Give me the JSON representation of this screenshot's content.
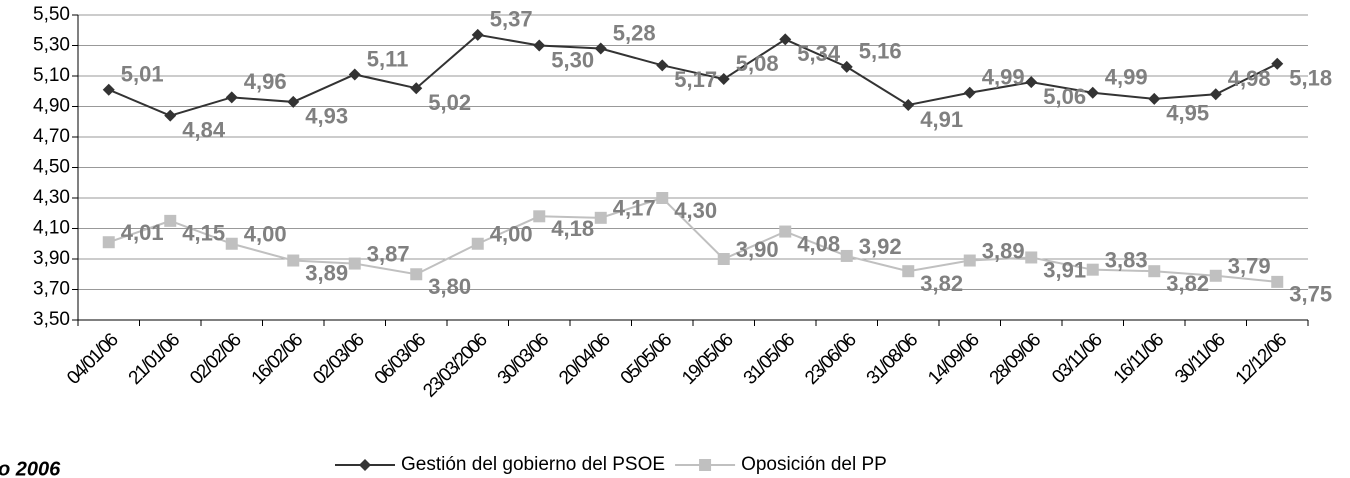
{
  "chart_data": {
    "type": "line",
    "categories": [
      "04/01/06",
      "21/01/06",
      "02/02/06",
      "16/02/06",
      "02/03/06",
      "06/03/06",
      "23/03/2006",
      "30/03/06",
      "20/04/06",
      "05/05/06",
      "19/05/06",
      "31/05/06",
      "23/06/06",
      "31/08/06",
      "14/09/06",
      "28/09/06",
      "03/11/06",
      "16/11/06",
      "30/11/06",
      "12/12/06"
    ],
    "series": [
      {
        "name": "Gestión del gobierno del PSOE",
        "color": "#333333",
        "marker": "diamond",
        "values": [
          5.01,
          4.84,
          4.96,
          4.93,
          5.11,
          5.02,
          5.37,
          5.3,
          5.28,
          5.17,
          5.08,
          5.34,
          5.16,
          4.91,
          4.99,
          5.06,
          4.99,
          4.95,
          4.98,
          5.18
        ],
        "value_labels": [
          "5,01",
          "4,84",
          "4,96",
          "4,93",
          "5,11",
          "5,02",
          "5,37",
          "5,30",
          "5,28",
          "5,17",
          "5,08",
          "5,34",
          "5,16",
          "4,91",
          "4,99",
          "5,06",
          "4,99",
          "4,95",
          "4,98",
          "5,18"
        ]
      },
      {
        "name": "Oposición del PP",
        "color": "#c0c0c0",
        "marker": "square",
        "values": [
          4.01,
          4.15,
          4.0,
          3.89,
          3.87,
          3.8,
          4.0,
          4.18,
          4.17,
          4.3,
          3.9,
          4.08,
          3.92,
          3.82,
          3.89,
          3.91,
          3.83,
          3.82,
          3.79,
          3.75
        ],
        "value_labels": [
          "4,01",
          "4,15",
          "4,00",
          "3,89",
          "3,87",
          "3,80",
          "4,00",
          "4,18",
          "4,17",
          "4,30",
          "3,90",
          "4,08",
          "3,92",
          "3,82",
          "3,89",
          "3,91",
          "3,83",
          "3,82",
          "3,79",
          "3,75"
        ]
      }
    ],
    "ylim": [
      3.5,
      5.5
    ],
    "yticks": [
      {
        "value": 3.5,
        "label": "3,50"
      },
      {
        "value": 3.7,
        "label": "3,70"
      },
      {
        "value": 3.9,
        "label": "3,90"
      },
      {
        "value": 4.1,
        "label": "4,10"
      },
      {
        "value": 4.3,
        "label": "4,30"
      },
      {
        "value": 4.5,
        "label": "4,50"
      },
      {
        "value": 4.7,
        "label": "4,70"
      },
      {
        "value": 4.9,
        "label": "4,90"
      },
      {
        "value": 5.1,
        "label": "5,10"
      },
      {
        "value": 5.3,
        "label": "5,30"
      },
      {
        "value": 5.5,
        "label": "5,50"
      }
    ],
    "grid": true,
    "legend": "bottom",
    "footnote": "o 2006"
  }
}
